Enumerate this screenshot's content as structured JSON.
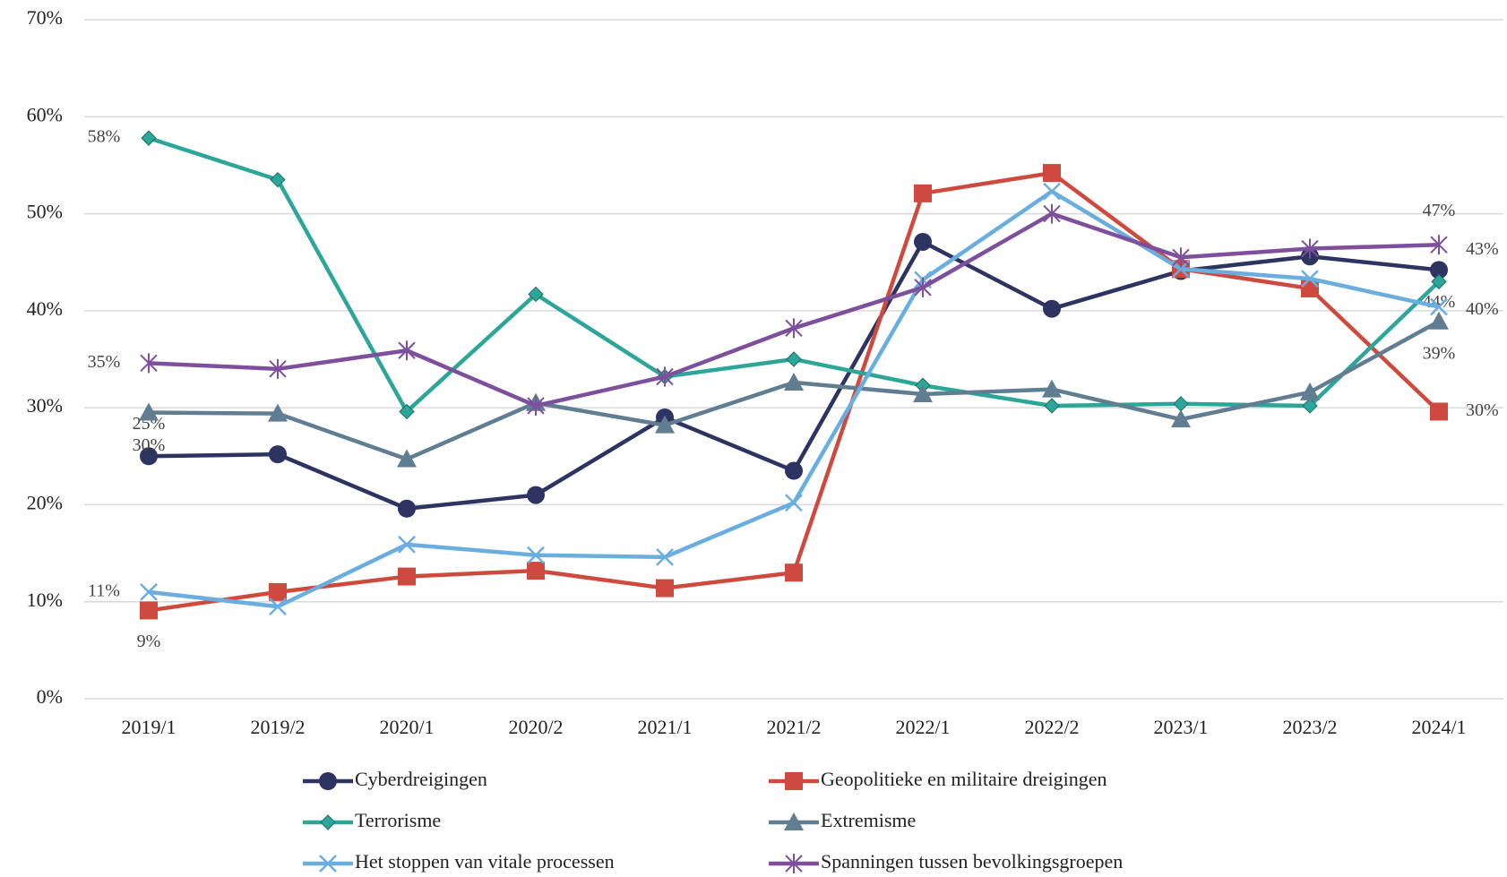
{
  "chart_data": {
    "type": "line",
    "categories": [
      "2019/1",
      "2019/2",
      "2020/1",
      "2020/2",
      "2021/1",
      "2021/2",
      "2022/1",
      "2022/2",
      "2023/1",
      "2023/2",
      "2024/1"
    ],
    "ylim": [
      0,
      70
    ],
    "yticks": [
      {
        "value": 0,
        "label": "0%"
      },
      {
        "value": 10,
        "label": "10%"
      },
      {
        "value": 20,
        "label": "20%"
      },
      {
        "value": 30,
        "label": "30%"
      },
      {
        "value": 40,
        "label": "40%"
      },
      {
        "value": 50,
        "label": "50%"
      },
      {
        "value": 60,
        "label": "60%"
      },
      {
        "value": 70,
        "label": "70%"
      }
    ],
    "grid": true,
    "legend": "bottom",
    "series": [
      {
        "name": "Cyberdreigingen",
        "color": "#2e3462",
        "marker": "circle",
        "values": [
          25.0,
          25.2,
          19.6,
          21.0,
          29.0,
          23.5,
          47.1,
          40.2,
          44.1,
          45.6,
          44.2
        ],
        "value_labels": [
          "25%",
          null,
          null,
          null,
          null,
          null,
          null,
          null,
          null,
          null,
          "44%"
        ]
      },
      {
        "name": "Geopolitieke en militaire dreigingen",
        "color": "#cf4a3e",
        "marker": "square",
        "values": [
          9.1,
          11.0,
          12.6,
          13.2,
          11.4,
          13.0,
          52.1,
          54.2,
          44.3,
          42.3,
          29.6
        ],
        "value_labels": [
          "9%",
          null,
          null,
          null,
          null,
          null,
          null,
          null,
          null,
          null,
          "30%"
        ]
      },
      {
        "name": "Terrorisme",
        "color": "#2ba698",
        "marker": "diamond",
        "values": [
          57.8,
          53.5,
          29.6,
          41.7,
          33.2,
          35.0,
          32.3,
          30.2,
          30.4,
          30.2,
          43.0
        ],
        "value_labels": [
          "58%",
          null,
          null,
          null,
          null,
          null,
          null,
          null,
          null,
          null,
          "43%"
        ]
      },
      {
        "name": "Extremisme",
        "color": "#617d91",
        "marker": "triangle",
        "values": [
          29.5,
          29.4,
          24.7,
          30.5,
          28.2,
          32.6,
          31.4,
          31.9,
          28.8,
          31.6,
          38.9
        ],
        "value_labels": [
          "30%",
          null,
          null,
          null,
          null,
          null,
          null,
          null,
          null,
          null,
          "39%"
        ]
      },
      {
        "name": "Het stoppen van vitale processen",
        "color": "#6aaee0",
        "marker": "x",
        "values": [
          11.0,
          9.5,
          15.9,
          14.8,
          14.6,
          20.2,
          43.2,
          52.3,
          44.3,
          43.3,
          40.4
        ],
        "value_labels": [
          "11%",
          null,
          null,
          null,
          null,
          null,
          null,
          null,
          null,
          null,
          "40%"
        ]
      },
      {
        "name": "Spanningen tussen bevolkingsgroepen",
        "color": "#7e4f9c",
        "marker": "star",
        "values": [
          34.6,
          34.0,
          35.9,
          30.2,
          33.2,
          38.2,
          42.4,
          50.0,
          45.5,
          46.4,
          46.8
        ],
        "value_labels": [
          "35%",
          null,
          null,
          null,
          null,
          null,
          null,
          null,
          null,
          null,
          "47%"
        ]
      }
    ]
  }
}
